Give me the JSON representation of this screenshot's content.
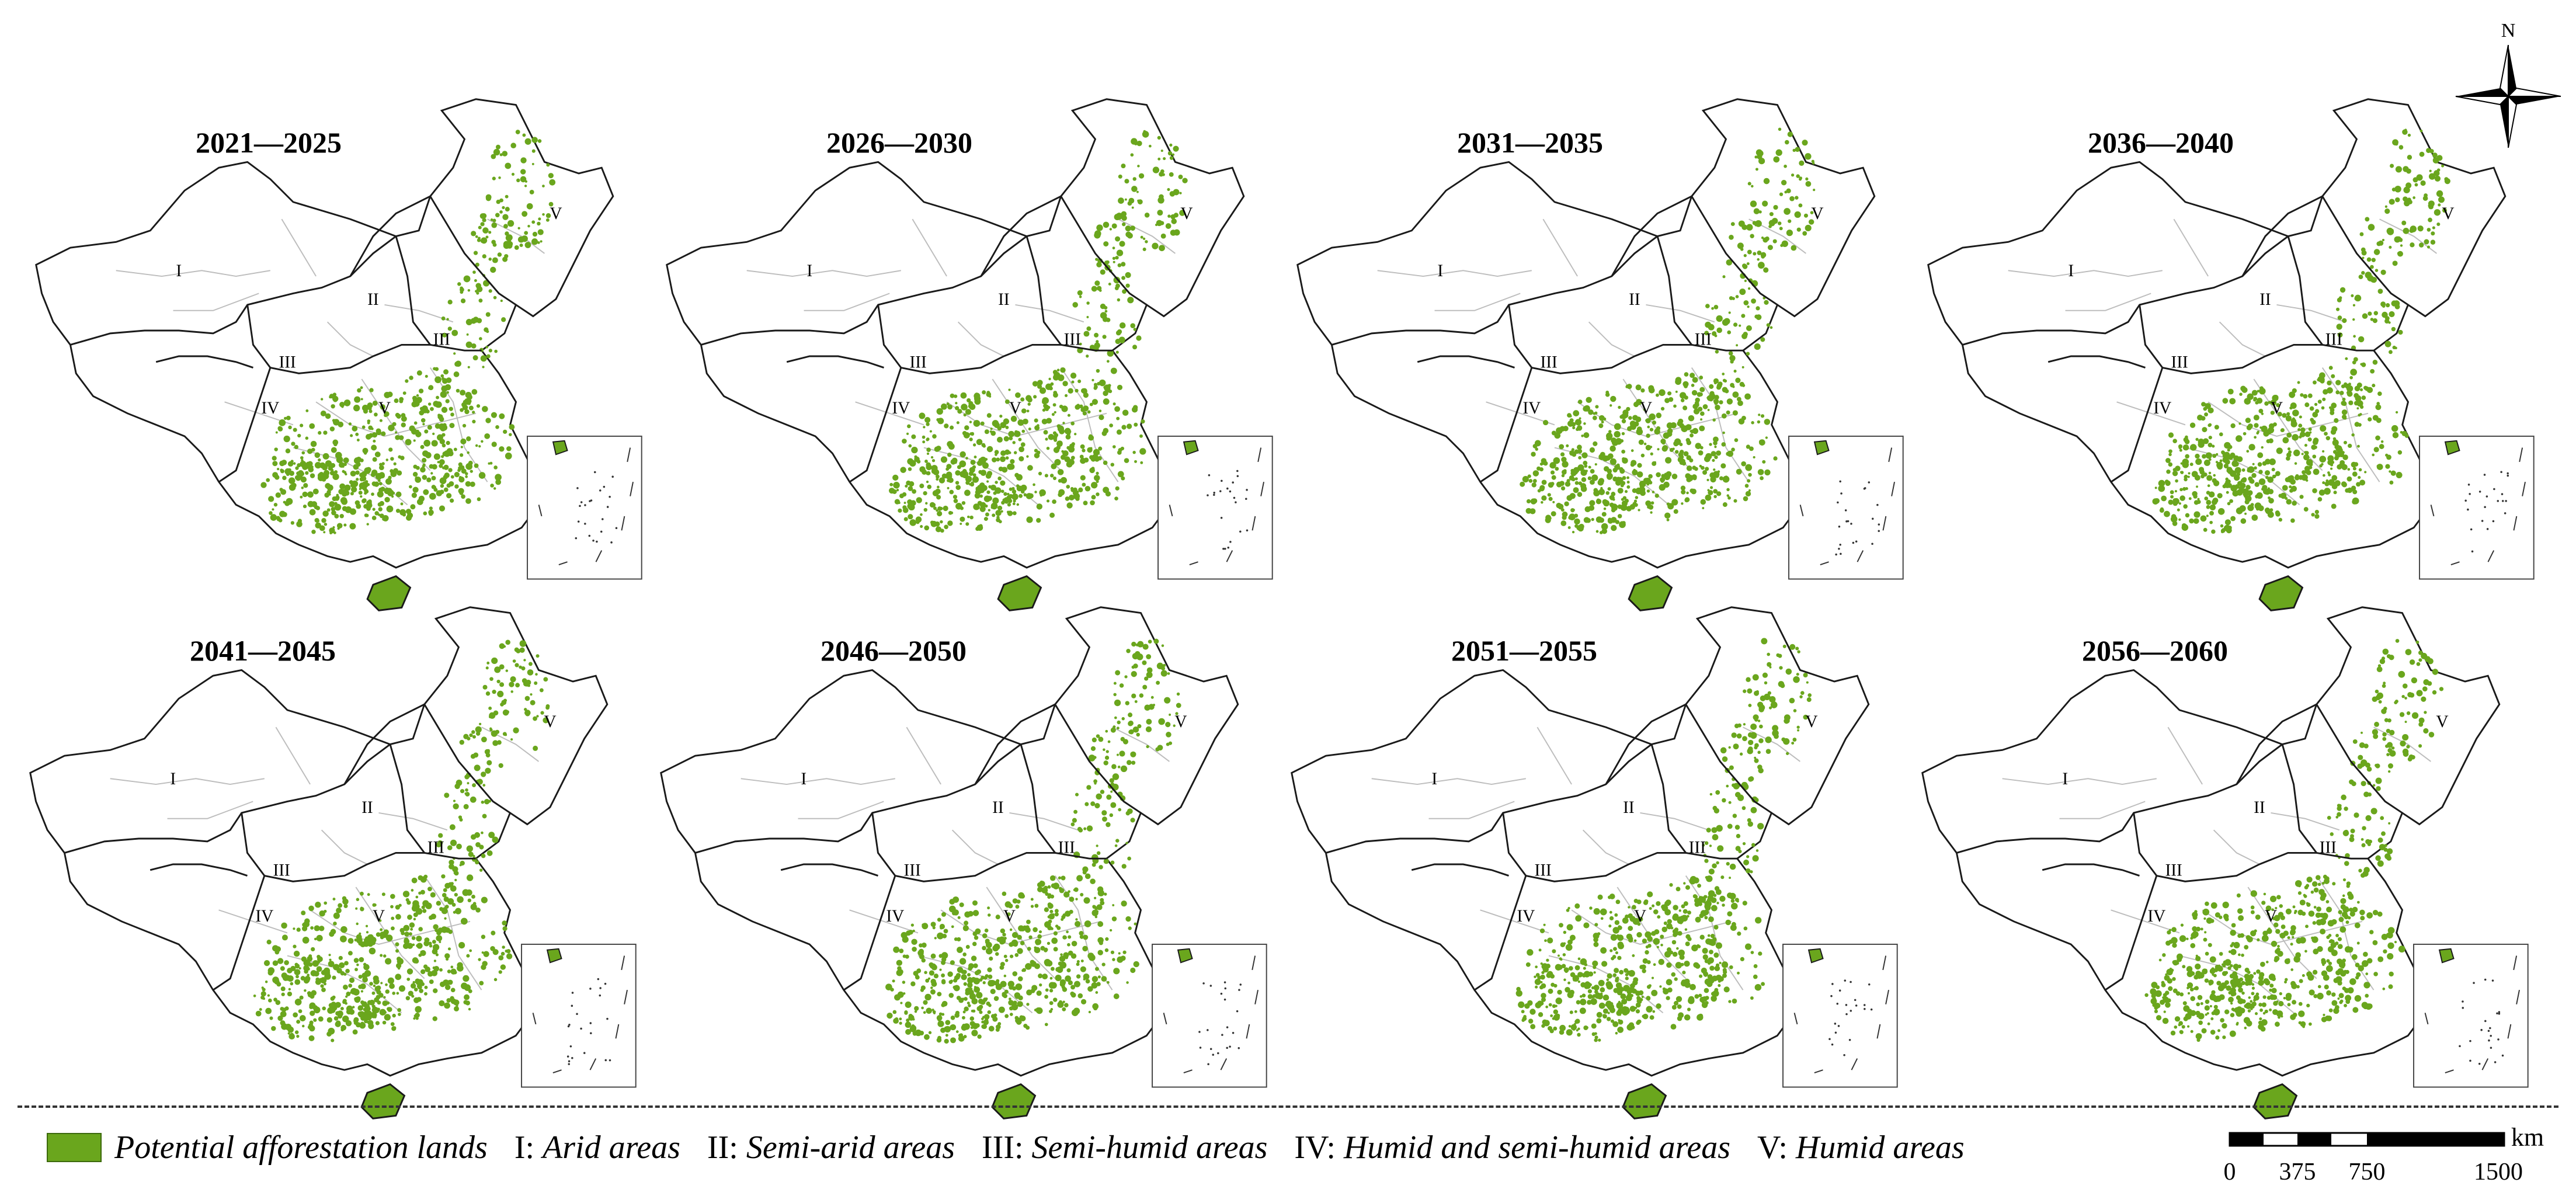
{
  "panels": [
    {
      "title": "2021—2025"
    },
    {
      "title": "2026—2030"
    },
    {
      "title": "2031—2035"
    },
    {
      "title": "2036—2040"
    },
    {
      "title": "2041—2045"
    },
    {
      "title": "2046—2050"
    },
    {
      "title": "2051—2055"
    },
    {
      "title": "2056—2060"
    }
  ],
  "region_labels": [
    "I",
    "II",
    "III",
    "III",
    "IV",
    "V",
    "V"
  ],
  "compass": {
    "north_label": "N"
  },
  "legend": {
    "swatch_label": "Potential afforestation lands",
    "zones": [
      {
        "numeral": "I:",
        "name": "Arid areas"
      },
      {
        "numeral": "II:",
        "name": "Semi-arid areas"
      },
      {
        "numeral": "III:",
        "name": "Semi-humid areas"
      },
      {
        "numeral": "IV:",
        "name": "Humid and semi-humid areas"
      },
      {
        "numeral": "V:",
        "name": "Humid areas"
      }
    ]
  },
  "scale_bar": {
    "unit": "km",
    "ticks": [
      "0",
      "375",
      "750",
      "1500"
    ]
  },
  "colors": {
    "afforestation": "#6aa61d",
    "boundary": "#1a1a1a",
    "province_line": "#bdbdbd"
  }
}
